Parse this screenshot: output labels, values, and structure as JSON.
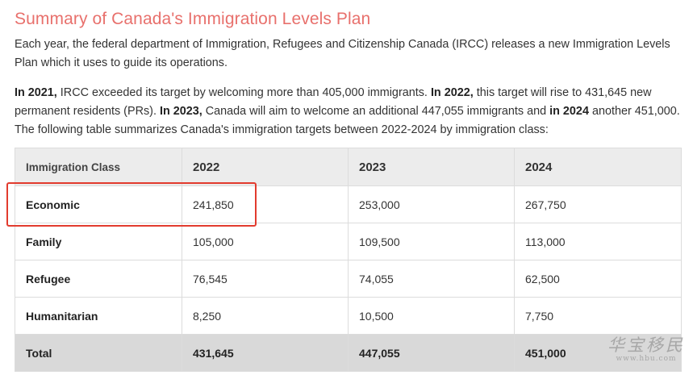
{
  "heading": "Summary of Canada's Immigration Levels Plan",
  "intro": "Each year, the federal department of Immigration, Refugees and Citizenship Canada (IRCC) releases a new Immigration Levels Plan which it uses to guide its operations.",
  "details": {
    "y2021": "In 2021,",
    "t1": " IRCC exceeded its target by welcoming more than 405,000 immigrants. ",
    "y2022": "In 2022,",
    "t2": " this target will rise to 431,645 new permanent residents (PRs). ",
    "y2023": "In 2023,",
    "t3": " Canada will aim to welcome an additional 447,055 immigrants and ",
    "y2024": "in 2024",
    "t4": " another 451,000. The following table summarizes Canada's immigration targets between 2022-2024 by immigration class:"
  },
  "table": {
    "headers": [
      "Immigration Class",
      "2022",
      "2023",
      "2024"
    ],
    "rows": [
      [
        "Economic",
        "241,850",
        "253,000",
        "267,750"
      ],
      [
        "Family",
        "105,000",
        "109,500",
        "113,000"
      ],
      [
        "Refugee",
        "76,545",
        "74,055",
        "62,500"
      ],
      [
        "Humanitarian",
        "8,250",
        "10,500",
        "7,750"
      ]
    ],
    "total": [
      "Total",
      "431,645",
      "447,055",
      "451,000"
    ]
  },
  "watermark": {
    "main": "华宝移民",
    "sub": "www.hbu.com"
  },
  "colors": {
    "heading": "#e8706c",
    "highlight": "#e23b2e",
    "header_bg": "#ececec",
    "total_bg": "#d9d9d9"
  }
}
